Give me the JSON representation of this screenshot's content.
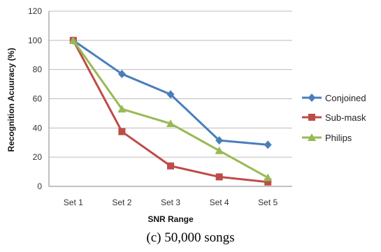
{
  "caption": "(c)   50,000 songs",
  "chart_data": {
    "type": "line",
    "xlabel": "SNR Range",
    "ylabel": "Recognition Acuuracy (%)",
    "categories": [
      "Set 1",
      "Set 2",
      "Set 3",
      "Set 4",
      "Set 5"
    ],
    "ylim": [
      0,
      120
    ],
    "yticks": [
      0,
      20,
      40,
      60,
      80,
      100,
      120
    ],
    "grid": true,
    "legend_position": "right",
    "series": [
      {
        "name": "Conjoined",
        "color": "#4a7ebb",
        "marker": "diamond",
        "values": [
          100,
          77,
          63,
          31.5,
          28.5
        ]
      },
      {
        "name": "Sub-mask",
        "color": "#be4b48",
        "marker": "square",
        "values": [
          100,
          37.5,
          14,
          6.5,
          3
        ]
      },
      {
        "name": "Philips",
        "color": "#98b954",
        "marker": "triangle",
        "values": [
          100,
          53,
          43,
          24.5,
          6
        ]
      }
    ]
  }
}
